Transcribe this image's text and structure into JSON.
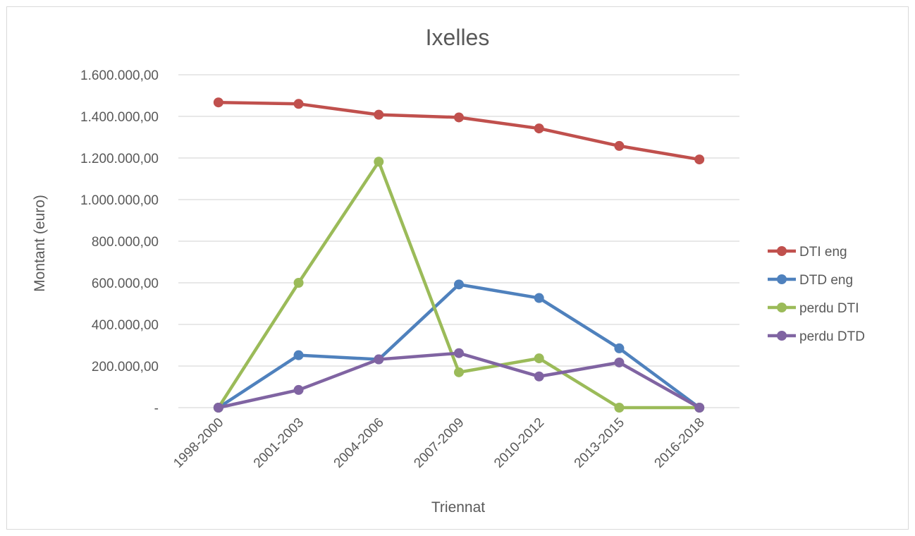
{
  "chart_data": {
    "type": "line",
    "title": "Ixelles",
    "xlabel": "Triennat",
    "ylabel": "Montant (euro)",
    "categories": [
      "1998-2000",
      "2001-2003",
      "2004-2006",
      "2007-2009",
      "2010-2012",
      "2013-2015",
      "2016-2018"
    ],
    "ylim": [
      0,
      1600000
    ],
    "yticks": [
      0,
      200000,
      400000,
      600000,
      800000,
      1000000,
      1200000,
      1400000,
      1600000
    ],
    "ytick_labels": [
      "-",
      "200.000,00",
      "400.000,00",
      "600.000,00",
      "800.000,00",
      "1.000.000,00",
      "1.200.000,00",
      "1.400.000,00",
      "1.600.000,00"
    ],
    "grid": true,
    "legend_position": "right",
    "series": [
      {
        "name": "DTI eng",
        "color": "#c0504d",
        "values": [
          1467000,
          1460000,
          1408000,
          1395000,
          1342000,
          1258000,
          1193000
        ]
      },
      {
        "name": "DTD eng",
        "color": "#4f81bd",
        "values": [
          0,
          252000,
          232000,
          592000,
          527000,
          285000,
          0
        ]
      },
      {
        "name": "perdu DTI",
        "color": "#9bbb59",
        "values": [
          0,
          600000,
          1182000,
          170000,
          237000,
          0,
          0
        ]
      },
      {
        "name": "perdu DTD",
        "color": "#8064a2",
        "values": [
          0,
          85000,
          232000,
          262000,
          150000,
          217000,
          0
        ]
      }
    ]
  }
}
